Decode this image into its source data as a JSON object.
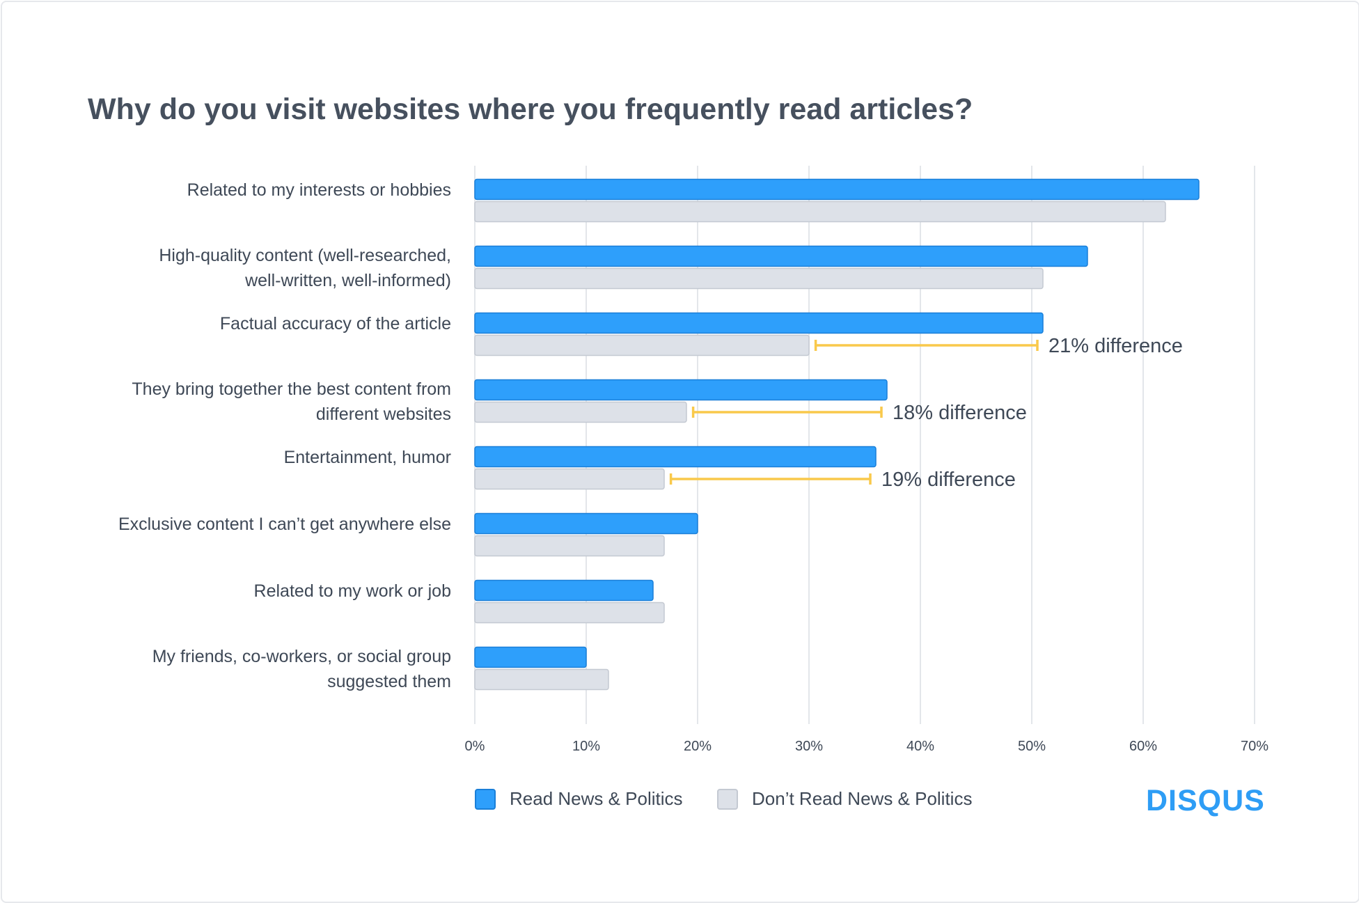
{
  "title": "Why do you visit websites where you frequently read articles?",
  "chart_data": {
    "type": "bar",
    "orientation": "horizontal",
    "categories": [
      [
        "Related to my interests or hobbies"
      ],
      [
        "High-quality content (well-researched,",
        "well-written, well-informed)"
      ],
      [
        "Factual accuracy of the article"
      ],
      [
        "They bring together the best content from",
        "different websites"
      ],
      [
        "Entertainment, humor"
      ],
      [
        "Exclusive content I can’t get anywhere else"
      ],
      [
        "Related to my work or job"
      ],
      [
        "My friends, co-workers, or social group",
        "suggested them"
      ]
    ],
    "series": [
      {
        "name": "Read News & Politics",
        "color": "#2e9ffb",
        "values": [
          65,
          55,
          51,
          37,
          36,
          20,
          16,
          10
        ]
      },
      {
        "name": "Don’t Read News & Politics",
        "color": "#dde1e8",
        "values": [
          62,
          51,
          30,
          19,
          17,
          17,
          17,
          12
        ]
      }
    ],
    "xlim": [
      0,
      70
    ],
    "x_ticks": [
      "0%",
      "10%",
      "20%",
      "30%",
      "40%",
      "50%",
      "60%",
      "70%"
    ],
    "grid": true,
    "legend_position": "bottom",
    "annotations": [
      {
        "category_index": 2,
        "from": 30.6,
        "to": 50.5,
        "label": "21% difference",
        "color": "#f9c94b"
      },
      {
        "category_index": 3,
        "from": 19.6,
        "to": 36.5,
        "label": "18% difference",
        "color": "#f9c94b"
      },
      {
        "category_index": 4,
        "from": 17.6,
        "to": 35.5,
        "label": "19% difference",
        "color": "#f9c94b"
      }
    ]
  },
  "legend": {
    "read_label": "Read News & Politics",
    "dont_read_label": "Don’t Read News & Politics"
  },
  "brand": {
    "name": "DISQUS",
    "color": "#2e9df5"
  }
}
